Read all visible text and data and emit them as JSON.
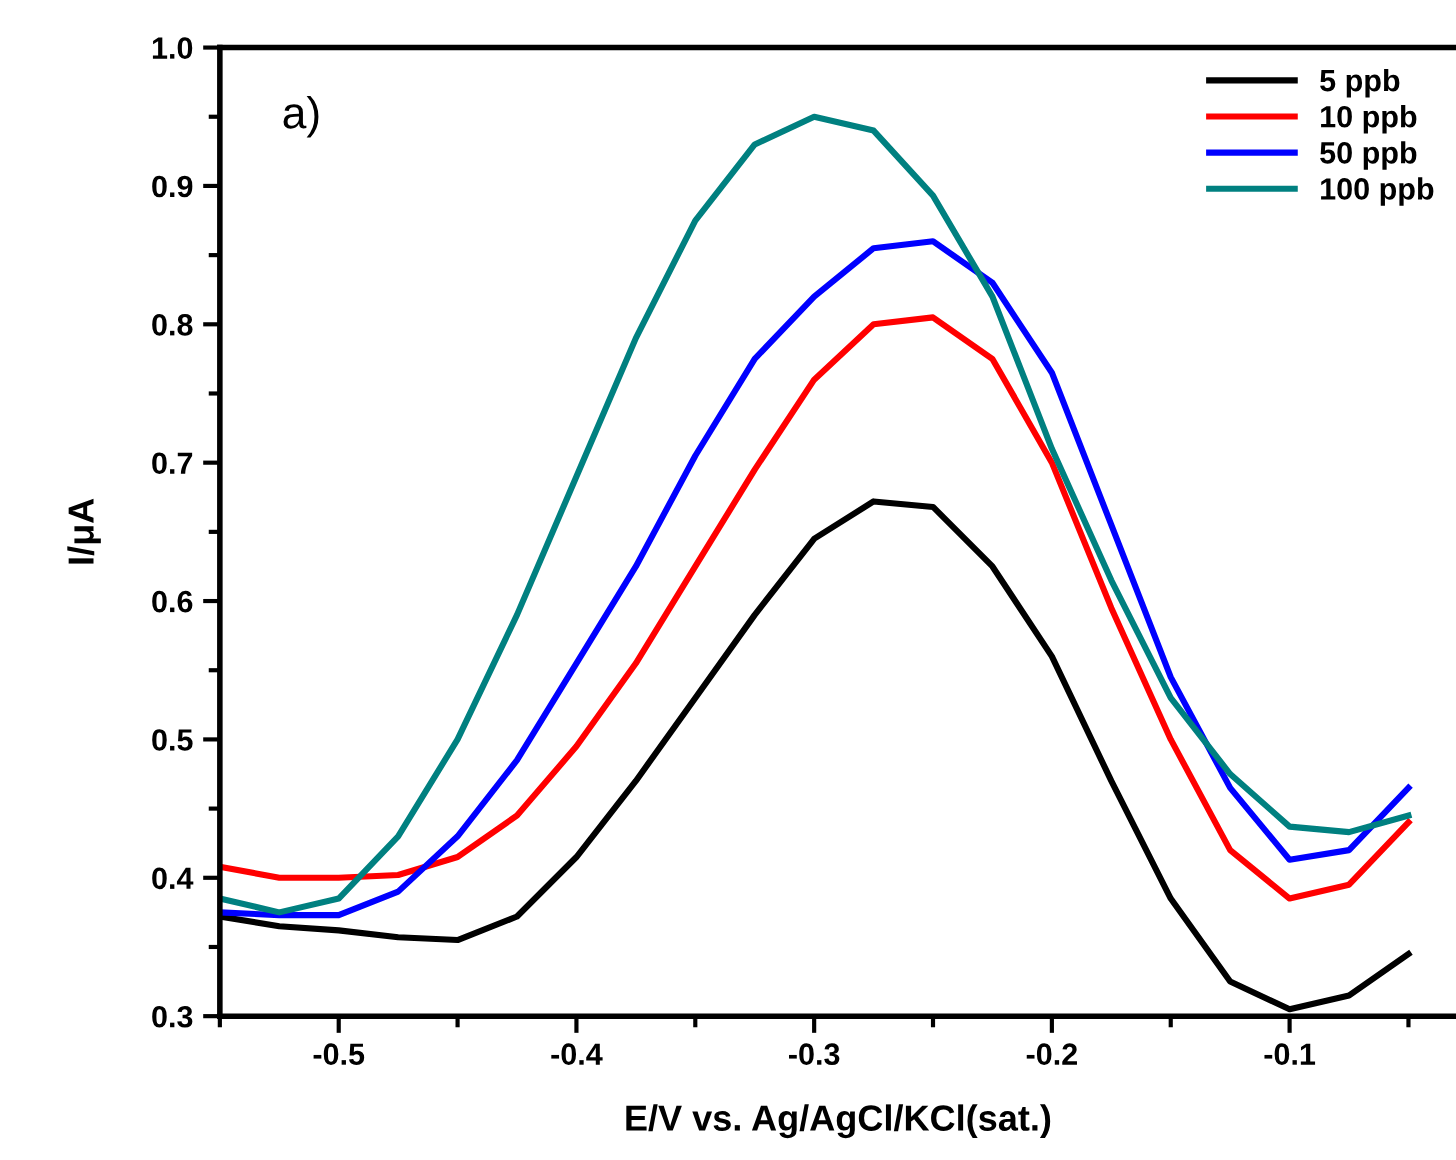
{
  "chart_data": {
    "type": "line",
    "xlabel": "E/V vs. Ag/AgCl/KCl(sat.)",
    "ylabel": "I/μA",
    "annotations": [
      "a)"
    ],
    "x": [
      -0.55,
      -0.525,
      -0.5,
      -0.475,
      -0.45,
      -0.425,
      -0.4,
      -0.375,
      -0.35,
      -0.325,
      -0.3,
      -0.275,
      -0.25,
      -0.225,
      -0.2,
      -0.175,
      -0.15,
      -0.125,
      -0.1,
      -0.075,
      -0.05
    ],
    "series": [
      {
        "name": "5 ppb",
        "color": "#000000",
        "values": [
          0.372,
          0.365,
          0.362,
          0.357,
          0.355,
          0.372,
          0.415,
          0.47,
          0.53,
          0.59,
          0.645,
          0.672,
          0.668,
          0.625,
          0.56,
          0.47,
          0.385,
          0.325,
          0.305,
          0.315,
          0.345
        ]
      },
      {
        "name": "10 ppb",
        "color": "#ff0000",
        "values": [
          0.408,
          0.4,
          0.4,
          0.402,
          0.415,
          0.445,
          0.495,
          0.555,
          0.625,
          0.695,
          0.76,
          0.8,
          0.805,
          0.775,
          0.7,
          0.595,
          0.5,
          0.42,
          0.385,
          0.395,
          0.44
        ]
      },
      {
        "name": "50 ppb",
        "color": "#0000ff",
        "values": [
          0.375,
          0.373,
          0.373,
          0.39,
          0.43,
          0.485,
          0.555,
          0.625,
          0.705,
          0.775,
          0.82,
          0.855,
          0.86,
          0.83,
          0.765,
          0.655,
          0.545,
          0.465,
          0.413,
          0.42,
          0.465
        ]
      },
      {
        "name": "100 ppb",
        "color": "#008080",
        "values": [
          0.385,
          0.375,
          0.385,
          0.43,
          0.5,
          0.59,
          0.69,
          0.79,
          0.875,
          0.93,
          0.95,
          0.94,
          0.893,
          0.82,
          0.71,
          0.615,
          0.53,
          0.475,
          0.437,
          0.433,
          0.445
        ]
      }
    ],
    "xlim": [
      -0.55,
      -0.03
    ],
    "xticks": [
      -0.5,
      -0.4,
      -0.3,
      -0.2,
      -0.1
    ],
    "ylim": [
      0.3,
      1.0
    ],
    "yticks": [
      0.3,
      0.4,
      0.5,
      0.6,
      0.7,
      0.8,
      0.9,
      {
        "value": 1,
        "label": "1.0"
      }
    ],
    "legend": "top right",
    "grid": false,
    "marker": "none",
    "line_style": "solid"
  }
}
